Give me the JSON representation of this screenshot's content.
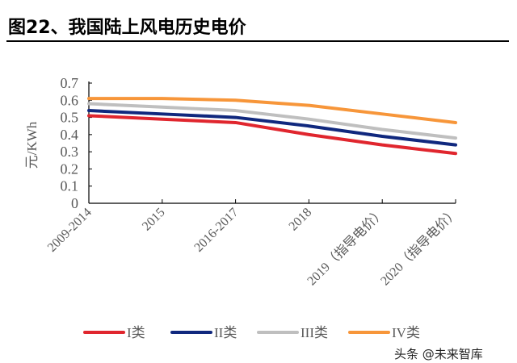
{
  "title": "图22、我国陆上风电历史电价",
  "watermark": "头条 @未来智库",
  "chart_data": {
    "type": "line",
    "ylabel": "元/KWh",
    "ylim": [
      0,
      0.7
    ],
    "yticks": [
      "0",
      "0.1",
      "0.2",
      "0.3",
      "0.4",
      "0.5",
      "0.6",
      "0.7"
    ],
    "categories": [
      "2009-2014",
      "2015",
      "2016-2017",
      "2018",
      "2019（指导电价）",
      "2020（指导电价）"
    ],
    "grid": false,
    "legend": "bottom",
    "series": [
      {
        "name": "I类",
        "color": "#e0262e",
        "values": [
          0.51,
          0.49,
          0.47,
          0.4,
          0.34,
          0.29
        ]
      },
      {
        "name": "II类",
        "color": "#10287e",
        "values": [
          0.54,
          0.52,
          0.5,
          0.45,
          0.39,
          0.34
        ]
      },
      {
        "name": "III类",
        "color": "#bfbfbf",
        "values": [
          0.58,
          0.56,
          0.54,
          0.49,
          0.43,
          0.38
        ]
      },
      {
        "name": "IV类",
        "color": "#f7963a",
        "values": [
          0.61,
          0.61,
          0.6,
          0.57,
          0.52,
          0.47
        ]
      }
    ]
  }
}
